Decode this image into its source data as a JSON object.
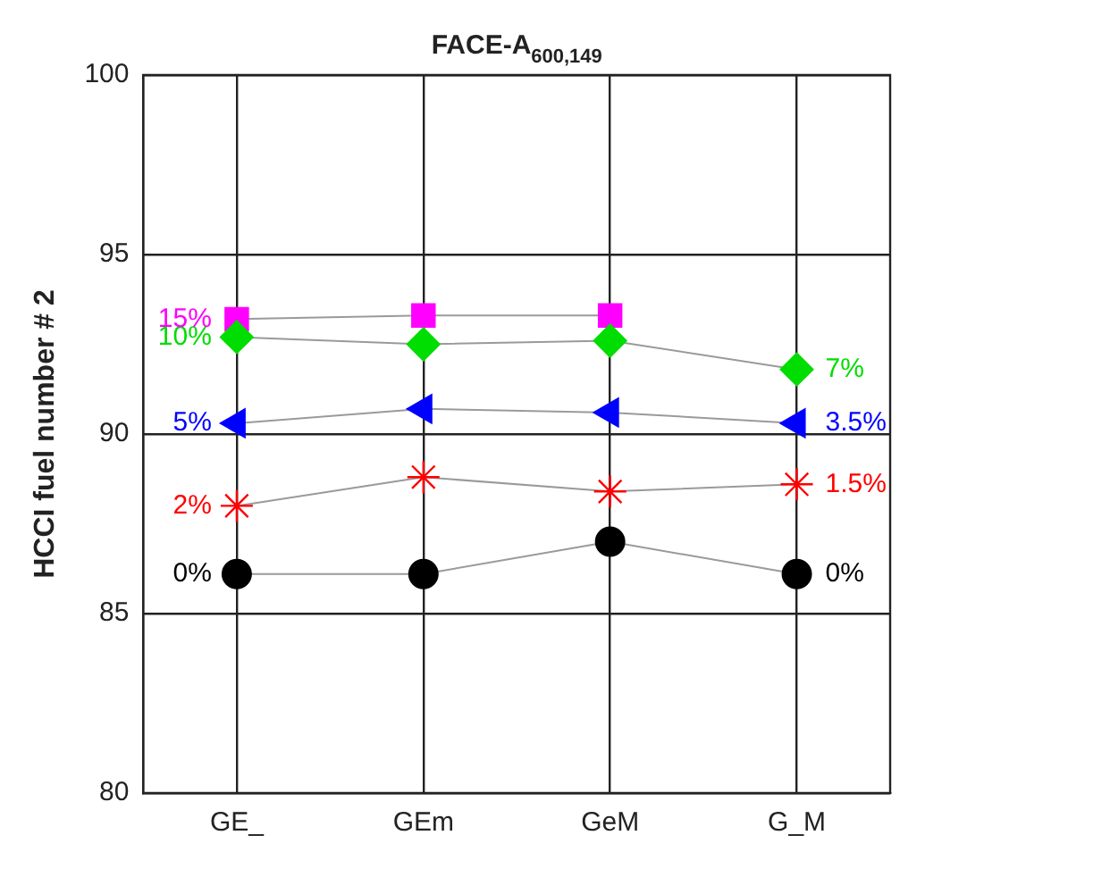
{
  "chart_data": {
    "type": "line",
    "title": "FACE-A$_{600,149}$",
    "ylabel": "HCCI fuel number # 2",
    "categories": [
      "GE_",
      "GEm",
      "GeM",
      "G_M"
    ],
    "ylim": [
      80,
      100
    ],
    "yticks": [
      80,
      85,
      90,
      95,
      100
    ],
    "grid": true,
    "legend": false,
    "series": [
      {
        "color": "#000000",
        "marker": "circle",
        "values": [
          86.1,
          86.1,
          87.0,
          86.1
        ]
      },
      {
        "color": "#ff0000",
        "marker": "cross",
        "values": [
          88.0,
          88.8,
          88.4,
          88.6
        ]
      },
      {
        "color": "#0000ff",
        "marker": "triangle",
        "values": [
          90.3,
          90.7,
          90.6,
          90.3
        ]
      },
      {
        "color": "#00dd00",
        "marker": "diamond",
        "values": [
          92.7,
          92.5,
          92.6,
          91.8
        ]
      },
      {
        "color": "#ff00ff",
        "marker": "square",
        "values": [
          93.2,
          93.3,
          93.3,
          null
        ]
      }
    ],
    "annotations": [
      {
        "text": "0%",
        "x": "GE_",
        "y": 86.1
      },
      {
        "text": "2%",
        "x": "GE_",
        "y": 88.0
      },
      {
        "text": "5%",
        "x": "GE_",
        "y": 90.3
      },
      {
        "text": "10%",
        "x": "GE_",
        "y": 92.7
      },
      {
        "text": "15%",
        "x": "GE_",
        "y": 93.2
      },
      {
        "text": "0%",
        "x": "G_M",
        "y": 86.1
      },
      {
        "text": "1.5%",
        "x": "G_M",
        "y": 88.6
      },
      {
        "text": "3.5%",
        "x": "G_M",
        "y": 90.3
      },
      {
        "text": "7%",
        "x": "G_M",
        "y": 91.8
      }
    ]
  }
}
